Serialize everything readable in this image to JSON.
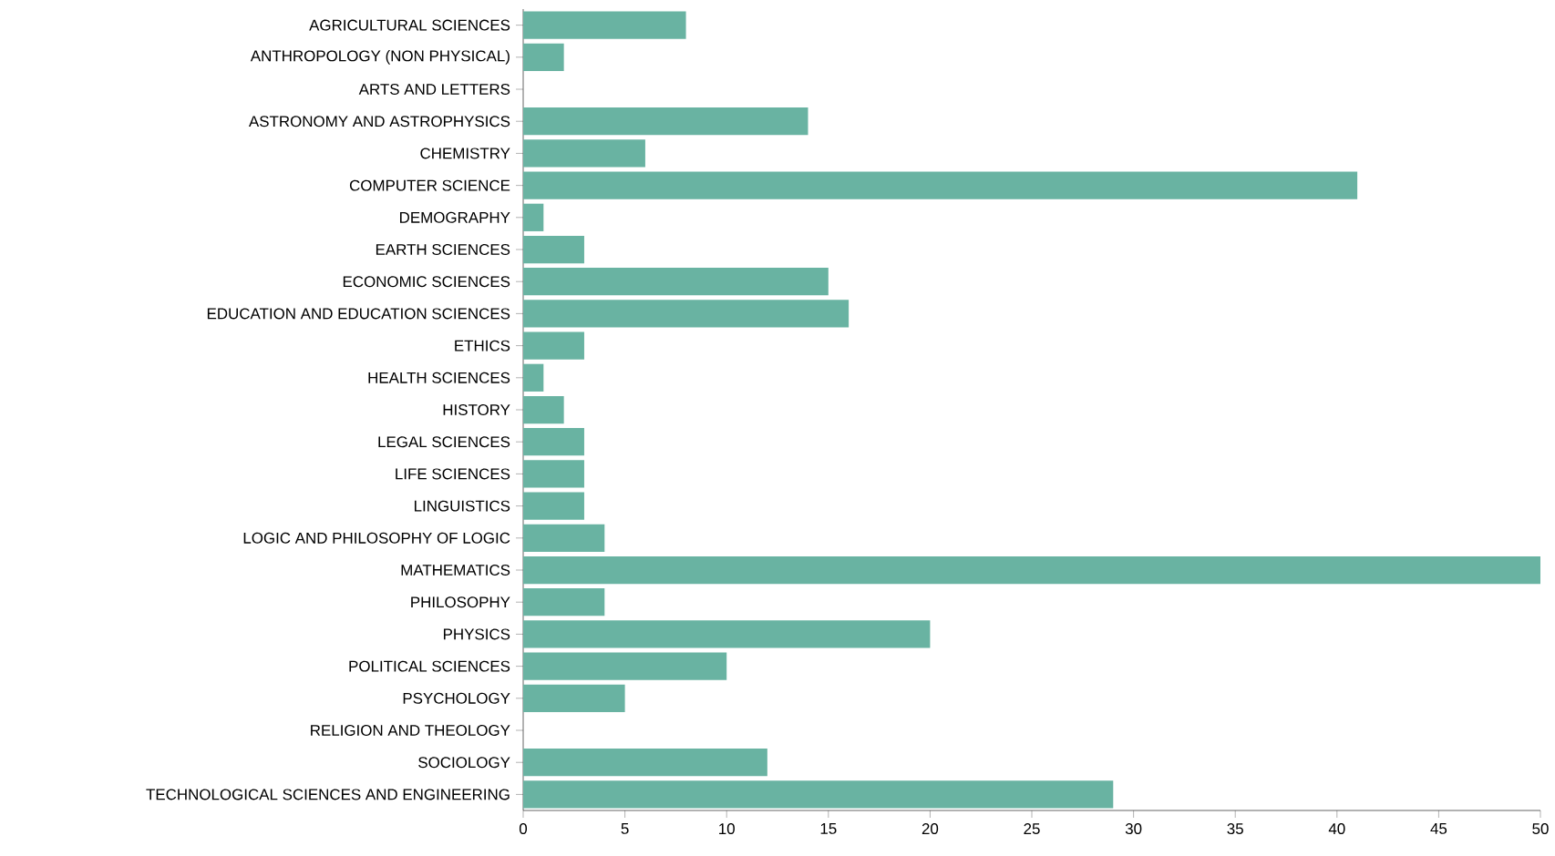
{
  "chart_data": {
    "type": "bar",
    "orientation": "horizontal",
    "categories": [
      "AGRICULTURAL SCIENCES",
      "ANTHROPOLOGY (NON PHYSICAL)",
      "ARTS AND LETTERS",
      "ASTRONOMY AND ASTROPHYSICS",
      "CHEMISTRY",
      "COMPUTER SCIENCE",
      "DEMOGRAPHY",
      "EARTH SCIENCES",
      "ECONOMIC SCIENCES",
      "EDUCATION AND EDUCATION SCIENCES",
      "ETHICS",
      "HEALTH SCIENCES",
      "HISTORY",
      "LEGAL SCIENCES",
      "LIFE SCIENCES",
      "LINGUISTICS",
      "LOGIC AND PHILOSOPHY OF LOGIC",
      "MATHEMATICS",
      "PHILOSOPHY",
      "PHYSICS",
      "POLITICAL SCIENCES",
      "PSYCHOLOGY",
      "RELIGION AND THEOLOGY",
      "SOCIOLOGY",
      "TECHNOLOGICAL SCIENCES AND ENGINEERING"
    ],
    "values": [
      8,
      2,
      0,
      14,
      6,
      41,
      1,
      3,
      15,
      16,
      3,
      1,
      2,
      3,
      3,
      3,
      4,
      50,
      4,
      20,
      10,
      5,
      0,
      12,
      29
    ],
    "color": "#69b3a2",
    "xlim": [
      0,
      50
    ],
    "xticks": [
      0,
      5,
      10,
      15,
      20,
      25,
      30,
      35,
      40,
      45,
      50
    ],
    "grid": false
  }
}
